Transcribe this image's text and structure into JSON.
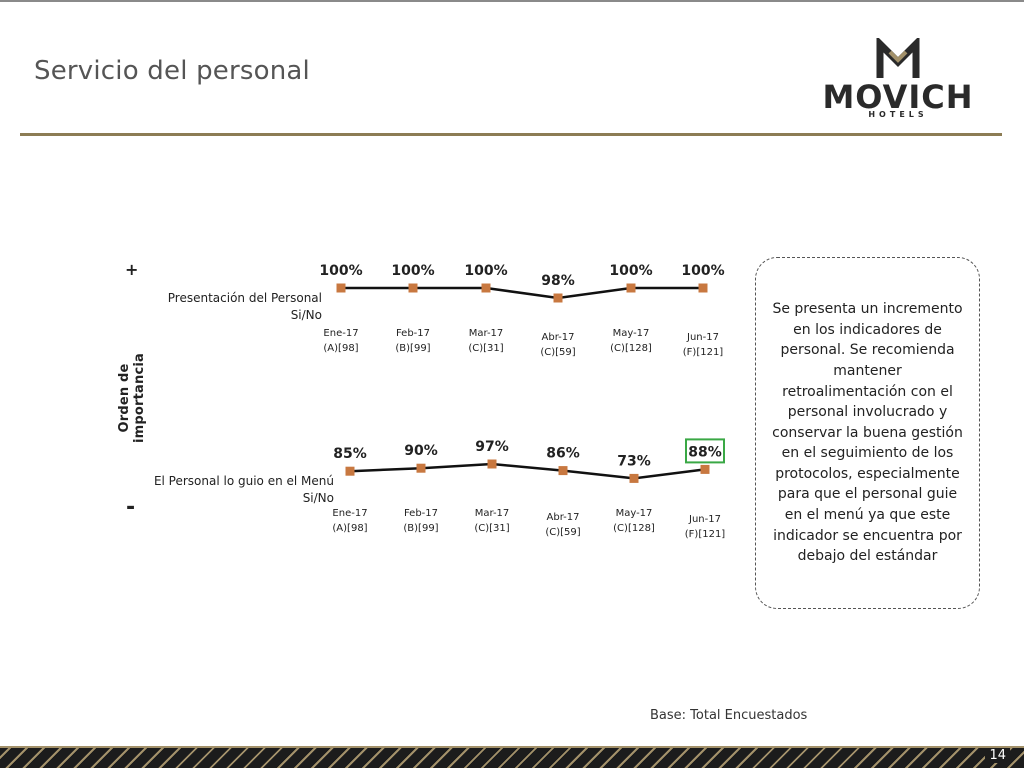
{
  "slide": {
    "title": "Servicio del personal",
    "logo": {
      "name": "MOVICH",
      "sub": "HOTELS"
    },
    "axis_label": "Orden de importancia",
    "axis_plus": "+",
    "axis_minus": "-",
    "note": "Se presenta un incremento en los indicadores de personal. Se recomienda mantener retroalimentación con el personal involucrado y conservar la buena gestión en el seguimiento de los protocolos, especialmente para que el personal guie en el menú ya que este indicador se encuentra por debajo del estándar",
    "base": "Base: Total Encuestados",
    "page_number": "14",
    "colors": {
      "accent": "#8c7c54",
      "marker": "#c87840",
      "line": "#111111",
      "highlight_box": "#3aa845"
    }
  },
  "chart_data": [
    {
      "type": "line",
      "label_line1": "Presentación del Personal",
      "label_line2": "Si/No",
      "x": [
        "Ene-17 (A)[98]",
        "Feb-17 (B)[99]",
        "Mar-17 (C)[31]",
        "Abr-17 (C)[59]",
        "May-17 (C)[128]",
        "Jun-17 (F)[121]"
      ],
      "tick_line1": [
        "Ene-17",
        "Feb-17",
        "Mar-17",
        "Abr-17",
        "May-17",
        "Jun-17"
      ],
      "tick_line2": [
        "(A)[98]",
        "(B)[99]",
        "(C)[31]",
        "(C)[59]",
        "(C)[128]",
        "(F)[121]"
      ],
      "values": [
        100,
        100,
        100,
        98,
        100,
        100
      ],
      "value_labels": [
        "100%",
        "100%",
        "100%",
        "98%",
        "100%",
        "100%"
      ],
      "highlight_index": null
    },
    {
      "type": "line",
      "label_line1": "El Personal lo guio en el Menú",
      "label_line2": "Si/No",
      "x": [
        "Ene-17 (A)[98]",
        "Feb-17 (B)[99]",
        "Mar-17 (C)[31]",
        "Abr-17 (C)[59]",
        "May-17 (C)[128]",
        "Jun-17 (F)[121]"
      ],
      "tick_line1": [
        "Ene-17",
        "Feb-17",
        "Mar-17",
        "Abr-17",
        "May-17",
        "Jun-17"
      ],
      "tick_line2": [
        "(A)[98]",
        "(B)[99]",
        "(C)[31]",
        "(C)[59]",
        "(C)[128]",
        "(F)[121]"
      ],
      "values": [
        85,
        90,
        97,
        86,
        73,
        88
      ],
      "value_labels": [
        "85%",
        "90%",
        "97%",
        "86%",
        "73%",
        "88%"
      ],
      "highlight_index": 5
    }
  ]
}
